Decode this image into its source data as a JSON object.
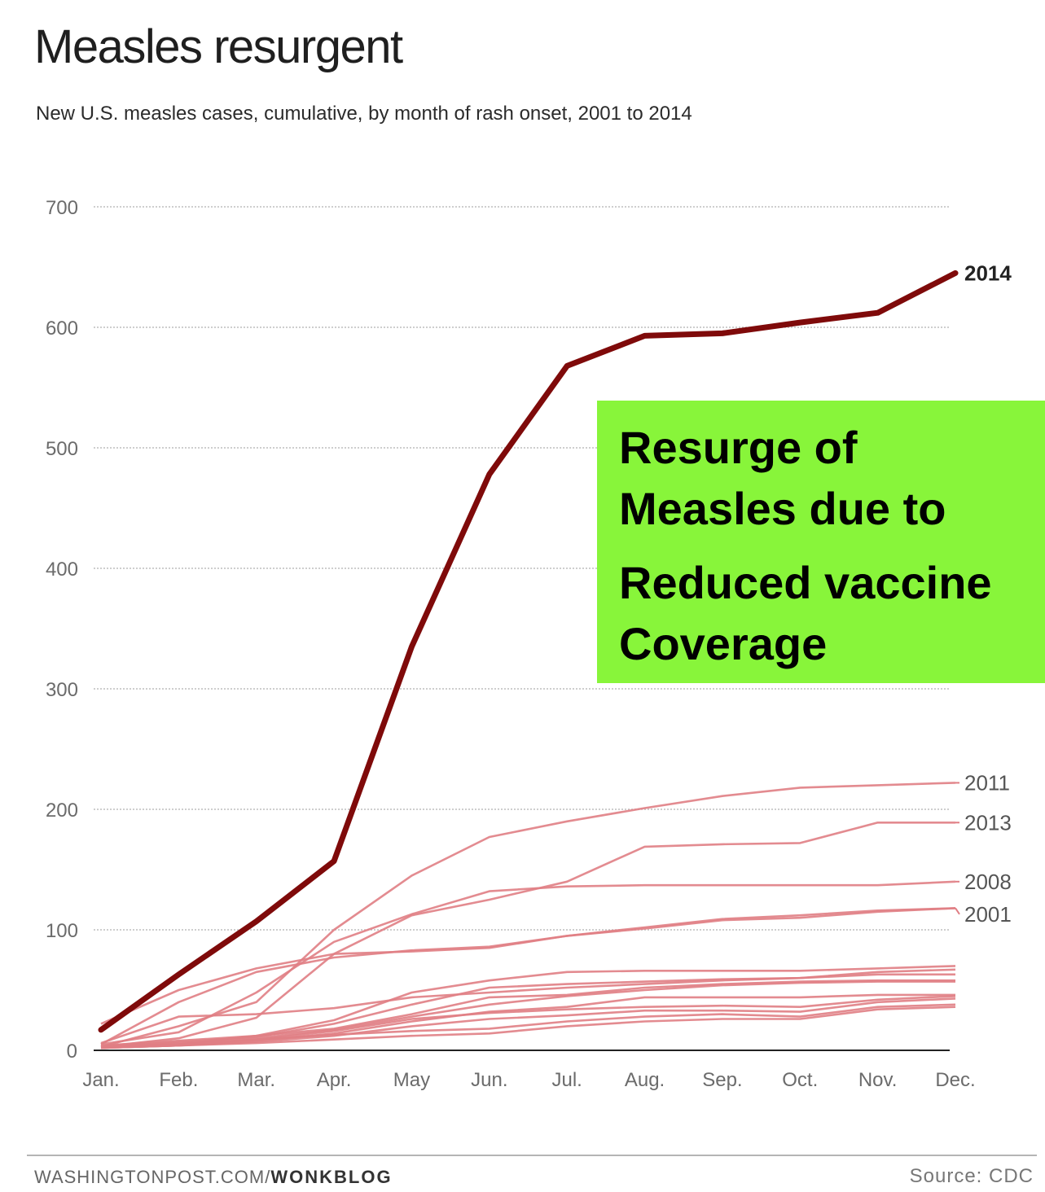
{
  "header": {
    "title": "Measles resurgent",
    "subtitle": "New U.S. measles cases, cumulative, by month of rash onset, 2001 to 2014"
  },
  "callout": {
    "lines": [
      "Resurge of",
      "Measles due to",
      "Reduced vaccine",
      "Coverage"
    ],
    "background": "#88f53a"
  },
  "footer": {
    "site": "WASHINGTONPOST.COM/",
    "section": "WONKBLOG",
    "source": "Source: CDC"
  },
  "colors": {
    "highlight": "#7f0a0a",
    "background_series": "#e07e84",
    "grid": "#bdbdbd",
    "axis": "#222222"
  },
  "chart_data": {
    "type": "line",
    "title": "Measles resurgent",
    "subtitle": "New U.S. measles cases, cumulative, by month of rash onset, 2001 to 2014",
    "categories": [
      "Jan.",
      "Feb.",
      "Mar.",
      "Apr.",
      "May",
      "Jun.",
      "Jul.",
      "Aug.",
      "Sep.",
      "Oct.",
      "Nov.",
      "Dec."
    ],
    "yticks": [
      0,
      100,
      200,
      300,
      400,
      500,
      600,
      700
    ],
    "ylim": [
      0,
      700
    ],
    "grid": true,
    "series": [
      {
        "name": "2014",
        "highlight": true,
        "values": [
          17,
          63,
          107,
          157,
          335,
          478,
          568,
          593,
          595,
          604,
          612,
          645
        ]
      },
      {
        "name": "2011",
        "values": [
          3,
          20,
          40,
          100,
          145,
          177,
          190,
          201,
          211,
          218,
          220,
          222
        ]
      },
      {
        "name": "2013",
        "values": [
          3,
          10,
          27,
          80,
          112,
          125,
          140,
          169,
          171,
          172,
          189,
          189
        ]
      },
      {
        "name": "2008",
        "values": [
          5,
          15,
          48,
          90,
          113,
          132,
          136,
          137,
          137,
          137,
          137,
          140
        ]
      },
      {
        "name": "2001",
        "values": [
          5,
          40,
          65,
          77,
          83,
          86,
          95,
          102,
          109,
          112,
          116,
          118
        ]
      },
      {
        "name": "",
        "values": [
          22,
          50,
          68,
          80,
          82,
          85,
          95,
          101,
          108,
          110,
          115,
          118
        ]
      },
      {
        "name": "",
        "values": [
          4,
          8,
          12,
          25,
          48,
          58,
          65,
          66,
          66,
          66,
          68,
          70
        ]
      },
      {
        "name": "",
        "values": [
          3,
          7,
          11,
          22,
          38,
          52,
          55,
          57,
          59,
          60,
          65,
          67
        ]
      },
      {
        "name": "",
        "values": [
          6,
          28,
          30,
          35,
          44,
          48,
          52,
          55,
          58,
          60,
          63,
          63
        ]
      },
      {
        "name": "",
        "values": [
          2,
          5,
          12,
          18,
          30,
          44,
          46,
          52,
          55,
          57,
          58,
          58
        ]
      },
      {
        "name": "",
        "values": [
          3,
          6,
          10,
          17,
          28,
          38,
          45,
          50,
          54,
          56,
          57,
          57
        ]
      },
      {
        "name": "",
        "values": [
          2,
          4,
          8,
          14,
          24,
          32,
          36,
          44,
          44,
          44,
          46,
          46
        ]
      },
      {
        "name": "",
        "values": [
          3,
          5,
          9,
          16,
          26,
          31,
          34,
          36,
          37,
          36,
          42,
          45
        ]
      },
      {
        "name": "",
        "values": [
          2,
          4,
          7,
          12,
          20,
          26,
          29,
          33,
          33,
          32,
          40,
          43
        ]
      },
      {
        "name": "",
        "values": [
          3,
          5,
          9,
          13,
          16,
          18,
          24,
          28,
          30,
          28,
          36,
          38
        ]
      },
      {
        "name": "",
        "values": [
          2,
          4,
          6,
          9,
          12,
          14,
          20,
          24,
          26,
          26,
          34,
          36
        ]
      }
    ]
  }
}
